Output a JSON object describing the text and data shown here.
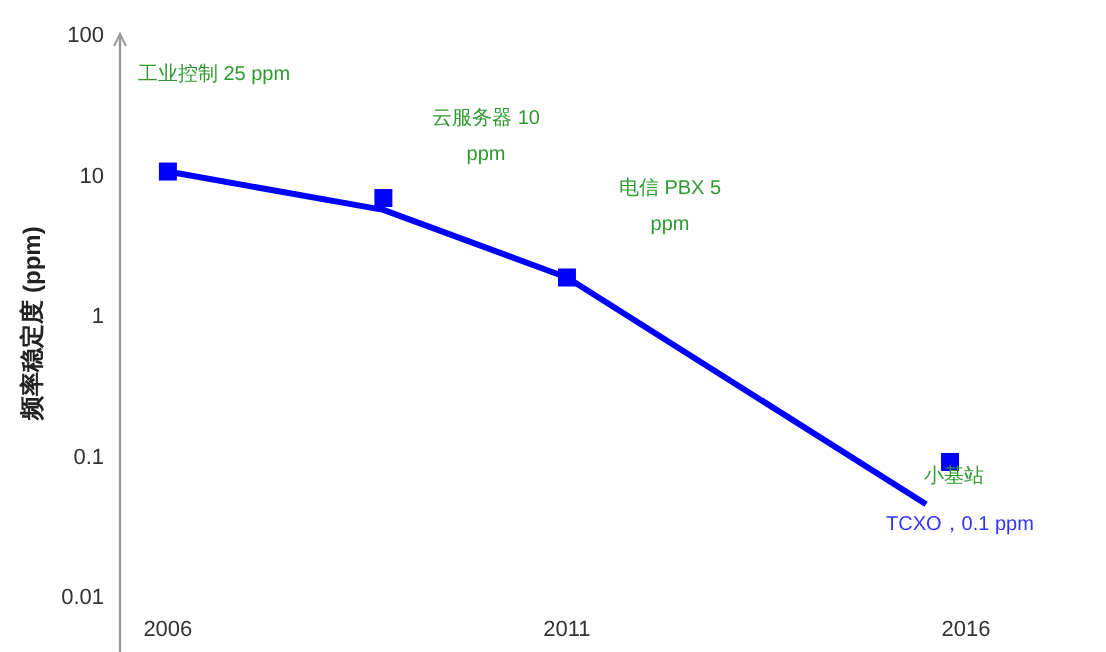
{
  "chart_data": {
    "type": "line",
    "ylabel": "频率稳定度 (ppm)",
    "log": "y",
    "ylim": [
      0.004,
      100
    ],
    "yticks": [
      0.01,
      0.1,
      1,
      10,
      100
    ],
    "xlim": [
      2005.4,
      2016
    ],
    "xticks": [
      2006,
      2011,
      2016
    ],
    "grid": false,
    "series": [
      {
        "color": "#0000ff",
        "marker": "none",
        "x": [
          2006,
          2008.7,
          2011,
          2015.5
        ],
        "values": [
          10.5,
          5.6,
          1.85,
          0.045
        ]
      },
      {
        "type": "scatter",
        "color": "#0000ff",
        "marker": "square",
        "x": [
          2006,
          2008.7,
          2011,
          2015.8
        ],
        "values": [
          10.5,
          6.8,
          1.85,
          0.09
        ]
      }
    ],
    "annotations": [
      "工业控制 25 ppm",
      "云服务器 10 ppm",
      "电信 PBX 5 ppm",
      "小基站",
      "TCXO，0.1 ppm"
    ]
  }
}
